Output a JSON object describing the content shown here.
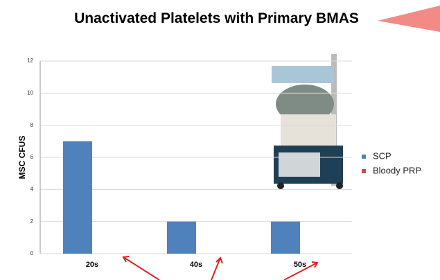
{
  "chart_data": {
    "type": "bar",
    "title": "Unactivated Platelets with Primary BMAS",
    "y_label": "MSC CFUS",
    "categories": [
      "20s",
      "40s",
      "50s"
    ],
    "series": [
      {
        "name": "SCP",
        "color": "#4f81bd",
        "values": [
          7,
          2,
          2
        ]
      },
      {
        "name": "Bloody PRP",
        "color": "#c0504d",
        "values": [
          0,
          0,
          0
        ]
      }
    ],
    "ylim": [
      0,
      12
    ],
    "yticks": [
      0,
      2,
      4,
      6,
      8,
      10,
      12
    ],
    "grid": true,
    "legend": "right"
  }
}
